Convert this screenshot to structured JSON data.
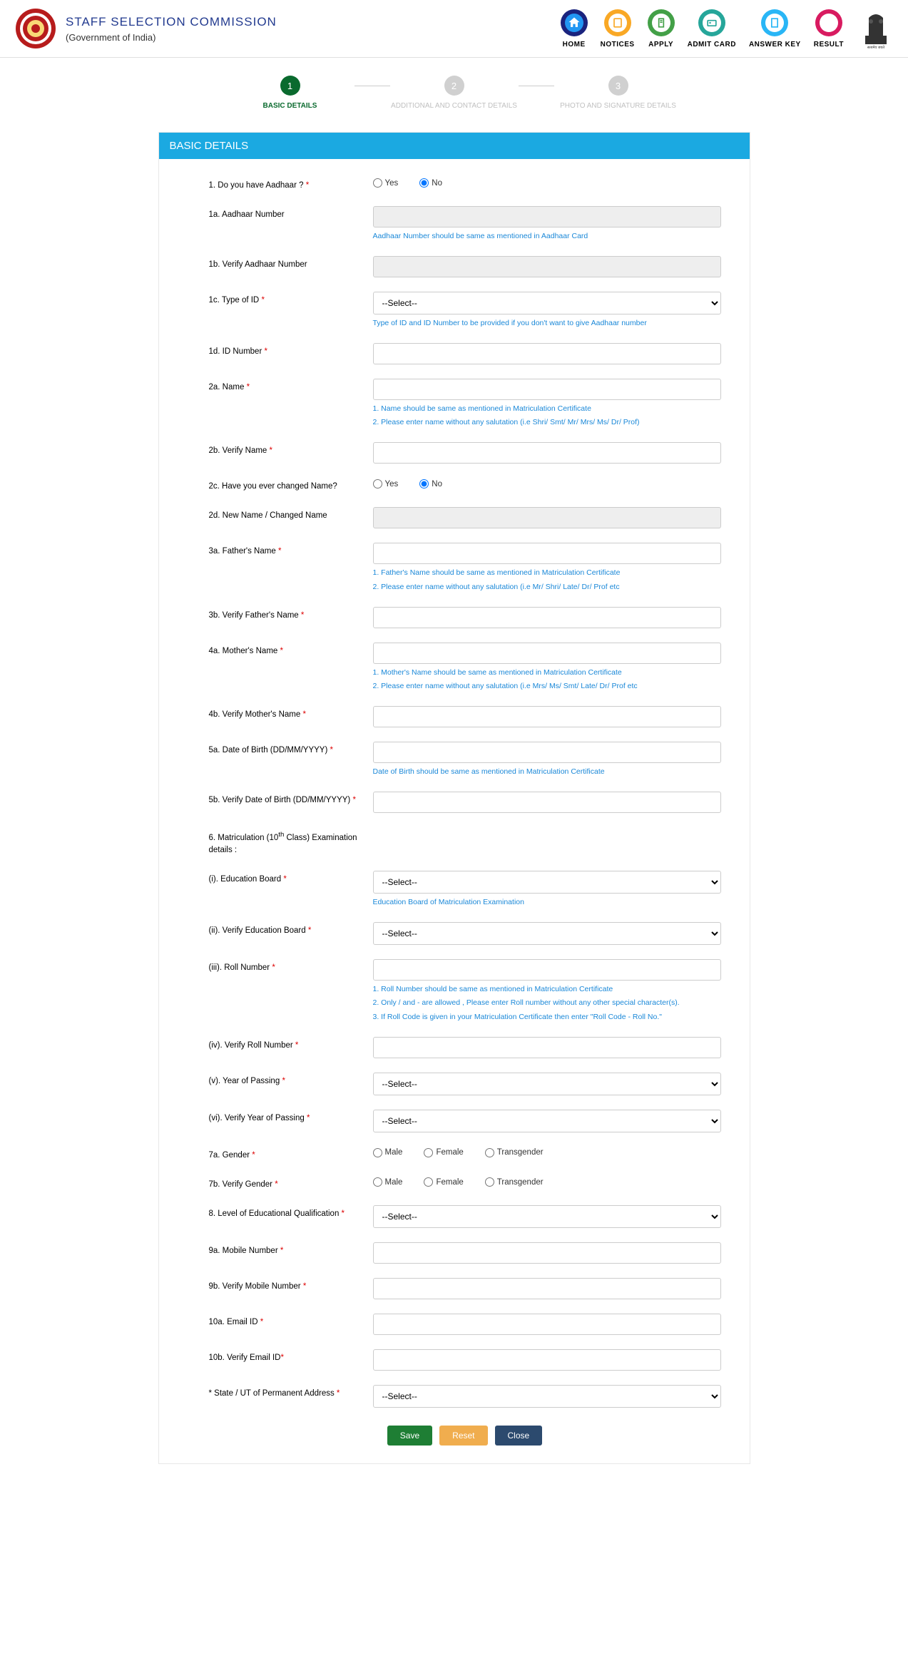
{
  "header": {
    "title": "STAFF SELECTION COMMISSION",
    "subtitle": "(Government of India)"
  },
  "nav": [
    {
      "label": "HOME",
      "bg": "#1a237e",
      "inner": "#2196f3",
      "icon": "home"
    },
    {
      "label": "NOTICES",
      "bg": "#f9a825",
      "inner": "#fff",
      "icon": "notice"
    },
    {
      "label": "APPLY",
      "bg": "#43a047",
      "inner": "#fff",
      "icon": "apply"
    },
    {
      "label": "ADMIT CARD",
      "bg": "#26a69a",
      "inner": "#fff",
      "icon": "card"
    },
    {
      "label": "ANSWER KEY",
      "bg": "#29b6f6",
      "inner": "#fff",
      "icon": "key"
    },
    {
      "label": "RESULT",
      "bg": "#d81b60",
      "inner": "#fff",
      "icon": "result"
    }
  ],
  "steps": [
    {
      "num": "1",
      "label": "BASIC DETAILS",
      "active": true
    },
    {
      "num": "2",
      "label": "ADDITIONAL AND CONTACT DETAILS",
      "active": false
    },
    {
      "num": "3",
      "label": "PHOTO AND SIGNATURE DETAILS",
      "active": false
    }
  ],
  "section_title": "BASIC DETAILS",
  "labels": {
    "q1": "1. Do you have Aadhaar ?",
    "q1a": "1a. Aadhaar Number",
    "q1b": "1b. Verify Aadhaar Number",
    "q1c": "1c. Type of ID",
    "q1d": "1d. ID Number",
    "q2a": "2a. Name",
    "q2b": "2b. Verify Name",
    "q2c": "2c. Have you ever changed Name?",
    "q2d": "2d. New Name / Changed Name",
    "q3a": "3a. Father's Name",
    "q3b": "3b. Verify Father's Name",
    "q4a": "4a. Mother's Name",
    "q4b": "4b. Verify Mother's Name",
    "q5a": "5a. Date of Birth (DD/MM/YYYY)",
    "q5b": "5b. Verify Date of Birth (DD/MM/YYYY)",
    "q6_pre": "6. Matriculation (10",
    "q6_sup": "th",
    "q6_post": " Class) Examination details :",
    "q6i": "(i). Education Board",
    "q6ii": "(ii). Verify Education Board",
    "q6iii": "(iii). Roll Number",
    "q6iv": "(iv). Verify Roll Number",
    "q6v": "(v). Year of Passing",
    "q6vi": "(vi). Verify Year of Passing",
    "q7a": "7a. Gender",
    "q7b": "7b. Verify Gender",
    "q8": "8. Level of Educational Qualification",
    "q9a": "9a. Mobile Number",
    "q9b": "9b. Verify Mobile Number",
    "q10a": "10a. Email ID",
    "q10b": "10b. Verify Email ID",
    "state": "* State / UT of Permanent Address"
  },
  "hints": {
    "aadhaar": "Aadhaar Number should be same as mentioned in Aadhaar Card",
    "typeid": "Type of ID and ID Number to be provided if you don't want to give Aadhaar number",
    "name1": "1. Name should be same as mentioned in Matriculation Certificate",
    "name2": "2. Please enter name without any salutation (i.e Shri/ Smt/ Mr/ Mrs/ Ms/ Dr/ Prof)",
    "father1": "1. Father's Name should be same as mentioned in Matriculation Certificate",
    "father2": "2. Please enter name without any salutation (i.e Mr/ Shri/ Late/ Dr/ Prof etc",
    "mother1": "1. Mother's Name should be same as mentioned in Matriculation Certificate",
    "mother2": "2. Please enter name without any salutation (i.e Mrs/ Ms/ Smt/ Late/ Dr/ Prof etc",
    "dob": "Date of Birth should be same as mentioned in Matriculation Certificate",
    "board": "Education Board of Matriculation Examination",
    "roll1": "1. Roll Number should be same as mentioned in Matriculation Certificate",
    "roll2": "2. Only / and - are allowed , Please enter Roll number without any other special character(s).",
    "roll3": "3. If Roll Code is given in your Matriculation Certificate then enter \"Roll Code - Roll No.\""
  },
  "options": {
    "yes": "Yes",
    "no": "No",
    "male": "Male",
    "female": "Female",
    "trans": "Transgender",
    "select": "--Select--"
  },
  "buttons": {
    "save": "Save",
    "reset": "Reset",
    "close": "Close"
  }
}
